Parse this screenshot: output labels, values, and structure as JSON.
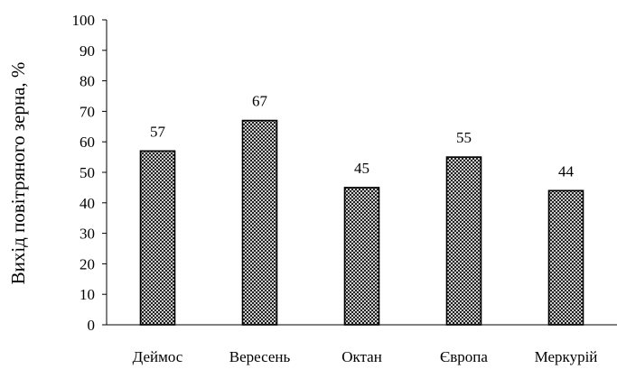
{
  "chart_data": {
    "type": "bar",
    "title": "",
    "xlabel": "",
    "ylabel": "Вихід повітряного зерна, %",
    "categories": [
      "Деймос",
      "Вересень",
      "Октан",
      "Європа",
      "Меркурій"
    ],
    "values": [
      57,
      67,
      45,
      55,
      44
    ],
    "ylim": [
      0,
      100
    ],
    "yticks": [
      0,
      10,
      20,
      30,
      40,
      50,
      60,
      70,
      80,
      90,
      100
    ],
    "grid": false,
    "legend": "none",
    "bar_pattern": "crosshatch",
    "colors": {
      "bar_fill": "#ffffff",
      "bar_hatch": "#000000",
      "bar_stroke": "#000000",
      "axis": "#000000"
    }
  }
}
